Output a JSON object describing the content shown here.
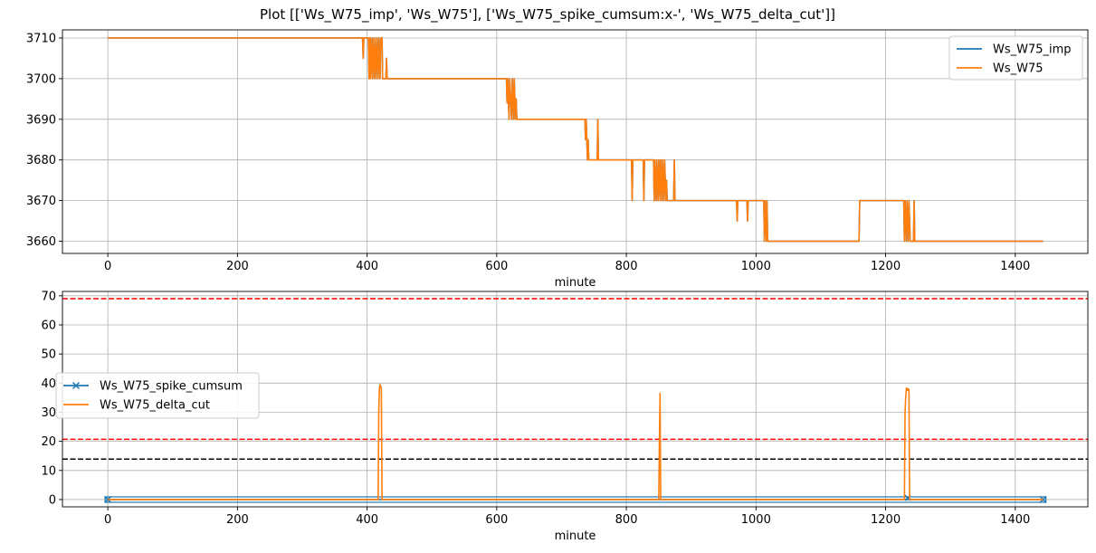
{
  "figure": {
    "title": "Plot [['Ws_W75_imp', 'Ws_W75'], ['Ws_W75_spike_cumsum:x-', 'Ws_W75_delta_cut']]"
  },
  "chart_data": [
    {
      "type": "line",
      "xlabel": "minute",
      "ylabel": "",
      "xlim": [
        -70,
        1512
      ],
      "ylim": [
        3657,
        3712
      ],
      "xticks": [
        0,
        200,
        400,
        600,
        800,
        1000,
        1200,
        1400
      ],
      "yticks": [
        3660,
        3670,
        3680,
        3690,
        3700,
        3710
      ],
      "grid": true,
      "legend_position": "top-right",
      "series": [
        {
          "name": "Ws_W75_imp",
          "color": "#1f77b4",
          "points": [
            [
              0,
              3710
            ],
            [
              393,
              3710
            ],
            [
              394,
              3705
            ],
            [
              395,
              3710
            ],
            [
              402,
              3710
            ],
            [
              403,
              3700
            ],
            [
              404,
              3710
            ],
            [
              405,
              3700
            ],
            [
              406,
              3710
            ],
            [
              408,
              3700
            ],
            [
              409,
              3710
            ],
            [
              411,
              3700
            ],
            [
              412,
              3710
            ],
            [
              414,
              3700
            ],
            [
              415,
              3710
            ],
            [
              417,
              3700
            ],
            [
              418,
              3710
            ],
            [
              420,
              3700
            ],
            [
              421,
              3710
            ],
            [
              423,
              3710
            ],
            [
              424,
              3700
            ],
            [
              429,
              3700
            ],
            [
              430,
              3705
            ],
            [
              431,
              3700
            ],
            [
              615,
              3700
            ],
            [
              616,
              3694
            ],
            [
              617,
              3700
            ],
            [
              619,
              3690
            ],
            [
              620,
              3700
            ],
            [
              623,
              3690
            ],
            [
              624,
              3700
            ],
            [
              626,
              3690
            ],
            [
              627,
              3700
            ],
            [
              629,
              3690
            ],
            [
              630,
              3695
            ],
            [
              631,
              3690
            ],
            [
              736,
              3690
            ],
            [
              737,
              3685
            ],
            [
              738,
              3690
            ],
            [
              740,
              3680
            ],
            [
              741,
              3685
            ],
            [
              742,
              3680
            ],
            [
              755,
              3680
            ],
            [
              756,
              3690
            ],
            [
              757,
              3680
            ],
            [
              808,
              3680
            ],
            [
              809,
              3670
            ],
            [
              810,
              3680
            ],
            [
              826,
              3680
            ],
            [
              827,
              3670
            ],
            [
              828,
              3680
            ],
            [
              842,
              3680
            ],
            [
              843,
              3670
            ],
            [
              844,
              3680
            ],
            [
              846,
              3670
            ],
            [
              847,
              3680
            ],
            [
              849,
              3670
            ],
            [
              850,
              3680
            ],
            [
              852,
              3670
            ],
            [
              853,
              3680
            ],
            [
              855,
              3670
            ],
            [
              856,
              3680
            ],
            [
              858,
              3670
            ],
            [
              859,
              3680
            ],
            [
              861,
              3670
            ],
            [
              862,
              3675
            ],
            [
              863,
              3670
            ],
            [
              873,
              3670
            ],
            [
              874,
              3680
            ],
            [
              875,
              3670
            ],
            [
              970,
              3670
            ],
            [
              971,
              3665
            ],
            [
              972,
              3670
            ],
            [
              986,
              3670
            ],
            [
              987,
              3665
            ],
            [
              988,
              3670
            ],
            [
              1012,
              3670
            ],
            [
              1013,
              3660
            ],
            [
              1014,
              3670
            ],
            [
              1016,
              3660
            ],
            [
              1017,
              3670
            ],
            [
              1018,
              3660
            ],
            [
              1159,
              3660
            ],
            [
              1160,
              3670
            ],
            [
              1228,
              3670
            ],
            [
              1229,
              3660
            ],
            [
              1230,
              3670
            ],
            [
              1232,
              3660
            ],
            [
              1233,
              3670
            ],
            [
              1235,
              3660
            ],
            [
              1236,
              3670
            ],
            [
              1238,
              3660
            ],
            [
              1243,
              3660
            ],
            [
              1244,
              3670
            ],
            [
              1245,
              3660
            ],
            [
              1443,
              3660
            ]
          ]
        },
        {
          "name": "Ws_W75",
          "color": "#ff7f0e",
          "points": [
            [
              0,
              3710
            ],
            [
              393,
              3710
            ],
            [
              394,
              3705
            ],
            [
              395,
              3710
            ],
            [
              402,
              3710
            ],
            [
              403,
              3700
            ],
            [
              404,
              3710
            ],
            [
              405,
              3700
            ],
            [
              406,
              3710
            ],
            [
              408,
              3700
            ],
            [
              409,
              3710
            ],
            [
              411,
              3700
            ],
            [
              412,
              3710
            ],
            [
              414,
              3700
            ],
            [
              415,
              3710
            ],
            [
              417,
              3700
            ],
            [
              418,
              3710
            ],
            [
              420,
              3700
            ],
            [
              421,
              3710
            ],
            [
              423,
              3710
            ],
            [
              424,
              3700
            ],
            [
              429,
              3700
            ],
            [
              430,
              3705
            ],
            [
              431,
              3700
            ],
            [
              615,
              3700
            ],
            [
              616,
              3694
            ],
            [
              617,
              3700
            ],
            [
              619,
              3690
            ],
            [
              620,
              3700
            ],
            [
              623,
              3690
            ],
            [
              624,
              3700
            ],
            [
              626,
              3690
            ],
            [
              627,
              3700
            ],
            [
              629,
              3690
            ],
            [
              630,
              3695
            ],
            [
              631,
              3690
            ],
            [
              736,
              3690
            ],
            [
              737,
              3685
            ],
            [
              738,
              3690
            ],
            [
              740,
              3680
            ],
            [
              741,
              3685
            ],
            [
              742,
              3680
            ],
            [
              755,
              3680
            ],
            [
              756,
              3690
            ],
            [
              757,
              3680
            ],
            [
              808,
              3680
            ],
            [
              809,
              3670
            ],
            [
              810,
              3680
            ],
            [
              826,
              3680
            ],
            [
              827,
              3670
            ],
            [
              828,
              3680
            ],
            [
              842,
              3680
            ],
            [
              843,
              3670
            ],
            [
              844,
              3680
            ],
            [
              846,
              3670
            ],
            [
              847,
              3680
            ],
            [
              849,
              3670
            ],
            [
              850,
              3680
            ],
            [
              852,
              3670
            ],
            [
              853,
              3680
            ],
            [
              855,
              3670
            ],
            [
              856,
              3680
            ],
            [
              858,
              3670
            ],
            [
              859,
              3680
            ],
            [
              861,
              3670
            ],
            [
              862,
              3675
            ],
            [
              863,
              3670
            ],
            [
              873,
              3670
            ],
            [
              874,
              3680
            ],
            [
              875,
              3670
            ],
            [
              970,
              3670
            ],
            [
              971,
              3665
            ],
            [
              972,
              3670
            ],
            [
              986,
              3670
            ],
            [
              987,
              3665
            ],
            [
              988,
              3670
            ],
            [
              1012,
              3670
            ],
            [
              1013,
              3660
            ],
            [
              1014,
              3670
            ],
            [
              1016,
              3660
            ],
            [
              1017,
              3670
            ],
            [
              1018,
              3660
            ],
            [
              1159,
              3660
            ],
            [
              1160,
              3670
            ],
            [
              1228,
              3670
            ],
            [
              1229,
              3660
            ],
            [
              1230,
              3670
            ],
            [
              1232,
              3660
            ],
            [
              1233,
              3670
            ],
            [
              1235,
              3660
            ],
            [
              1236,
              3670
            ],
            [
              1238,
              3660
            ],
            [
              1243,
              3660
            ],
            [
              1244,
              3670
            ],
            [
              1245,
              3660
            ],
            [
              1443,
              3660
            ]
          ]
        }
      ],
      "hlines": []
    },
    {
      "type": "line",
      "xlabel": "minute",
      "ylabel": "",
      "xlim": [
        -70,
        1512
      ],
      "ylim": [
        -2.5,
        71.5
      ],
      "xticks": [
        0,
        200,
        400,
        600,
        800,
        1000,
        1200,
        1400
      ],
      "yticks": [
        0,
        10,
        20,
        30,
        40,
        50,
        60,
        70
      ],
      "grid": true,
      "legend_position": "center-left",
      "series": [
        {
          "name": "Ws_W75_spike_cumsum",
          "color": "#1f77b4",
          "marker": "x",
          "x_range": [
            0,
            1443
          ],
          "value": 0,
          "extra_points": [
            [
              1234,
              0.6
            ]
          ]
        },
        {
          "name": "Ws_W75_delta_cut",
          "color": "#ff7f0e",
          "points": [
            [
              0,
              0
            ],
            [
              417,
              0
            ],
            [
              418,
              30
            ],
            [
              419,
              38
            ],
            [
              420,
              39.5
            ],
            [
              421,
              39
            ],
            [
              422,
              38
            ],
            [
              423,
              0
            ],
            [
              850,
              0
            ],
            [
              851,
              20
            ],
            [
              852,
              36.5
            ],
            [
              853,
              0
            ],
            [
              1229,
              0
            ],
            [
              1230,
              30
            ],
            [
              1231,
              35
            ],
            [
              1232,
              38.2
            ],
            [
              1233,
              38.3
            ],
            [
              1234,
              37.5
            ],
            [
              1235,
              38
            ],
            [
              1236,
              37.8
            ],
            [
              1237,
              0
            ],
            [
              1443,
              0
            ]
          ]
        }
      ],
      "hlines": [
        {
          "value": 69,
          "color": "#ff0000",
          "style": "dashed"
        },
        {
          "value": 20.7,
          "color": "#ff0000",
          "style": "dashed"
        },
        {
          "value": 13.9,
          "color": "#000000",
          "style": "dashed"
        }
      ]
    }
  ]
}
